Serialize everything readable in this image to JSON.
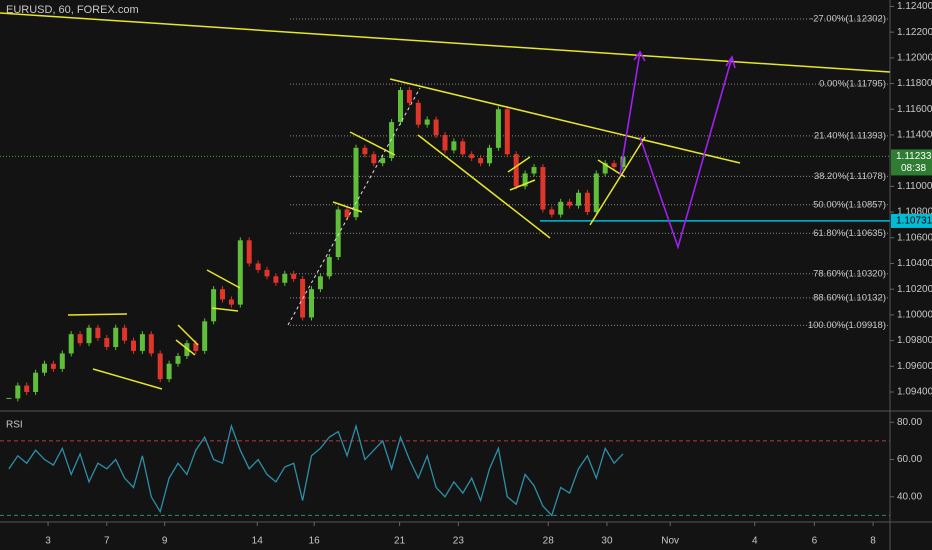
{
  "chart_data": [
    {
      "type": "candlestick",
      "title": "EURUSD, 60, FOREX.com",
      "up_color": "#5fbf3a",
      "down_color": "#e0352b",
      "x": [
        1,
        2,
        3,
        4,
        5,
        6,
        7,
        8,
        9,
        10,
        11,
        12,
        13,
        14,
        15,
        16,
        17,
        18,
        19,
        20,
        21,
        22,
        23,
        24,
        25,
        26,
        27,
        28,
        29,
        30,
        31,
        32,
        33,
        34,
        35,
        36,
        37,
        38,
        39,
        40,
        41,
        42,
        43,
        44,
        45,
        46,
        47,
        48,
        49,
        50,
        51,
        52,
        53,
        54,
        55,
        56,
        57,
        58,
        59,
        60,
        61,
        62,
        63,
        64,
        65,
        66,
        67,
        68,
        69,
        70
      ],
      "values": [
        1.0935,
        1.0945,
        1.094,
        1.0955,
        1.0962,
        1.0958,
        1.097,
        1.0985,
        1.0978,
        1.099,
        1.0982,
        1.0975,
        1.099,
        1.098,
        1.0972,
        1.0985,
        1.097,
        1.095,
        1.0962,
        1.0968,
        1.0978,
        1.0972,
        1.0995,
        1.102,
        1.1012,
        1.1008,
        1.1058,
        1.104,
        1.1035,
        1.103,
        1.1025,
        1.1032,
        1.1028,
        1.0998,
        1.102,
        1.103,
        1.1045,
        1.1082,
        1.1076,
        1.113,
        1.1125,
        1.1118,
        1.1122,
        1.115,
        1.1175,
        1.1165,
        1.1148,
        1.1152,
        1.114,
        1.1128,
        1.1135,
        1.1125,
        1.1122,
        1.1118,
        1.113,
        1.116,
        1.1125,
        1.11,
        1.111,
        1.1115,
        1.1082,
        1.1078,
        1.1088,
        1.1085,
        1.1095,
        1.108,
        1.111,
        1.1118,
        1.1115,
        1.1123
      ],
      "xlim": [
        0,
        100
      ],
      "xticks": [
        {
          "value": 5.4,
          "label": "3"
        },
        {
          "value": 12.0,
          "label": "7"
        },
        {
          "value": 18.5,
          "label": "9"
        },
        {
          "value": 28.9,
          "label": "14"
        },
        {
          "value": 35.3,
          "label": "16"
        },
        {
          "value": 44.9,
          "label": "21"
        },
        {
          "value": 51.5,
          "label": "23"
        },
        {
          "value": 61.6,
          "label": "28"
        },
        {
          "value": 68.2,
          "label": "30"
        },
        {
          "value": 75.3,
          "label": "Nov"
        },
        {
          "value": 84.8,
          "label": "4"
        },
        {
          "value": 91.5,
          "label": "6"
        },
        {
          "value": 98.1,
          "label": "8"
        }
      ],
      "ylim": [
        1.0926,
        1.1245
      ],
      "yticks": [
        {
          "value": 1.124,
          "label": "1.12400"
        },
        {
          "value": 1.122,
          "label": "1.12200"
        },
        {
          "value": 1.12,
          "label": "1.12000"
        },
        {
          "value": 1.118,
          "label": "1.11800"
        },
        {
          "value": 1.116,
          "label": "1.11600"
        },
        {
          "value": 1.114,
          "label": "1.11400"
        },
        {
          "value": 1.11,
          "label": "1.11000"
        },
        {
          "value": 1.108,
          "label": "1.10800"
        },
        {
          "value": 1.106,
          "label": "1.10600"
        },
        {
          "value": 1.104,
          "label": "1.10400"
        },
        {
          "value": 1.102,
          "label": "1.10200"
        },
        {
          "value": 1.1,
          "label": "1.10000"
        },
        {
          "value": 1.098,
          "label": "1.09800"
        },
        {
          "value": 1.096,
          "label": "1.09600"
        },
        {
          "value": 1.094,
          "label": "1.09400"
        }
      ],
      "fib_levels": [
        {
          "value": 1.12302,
          "label": "-27.00%(1.12302)"
        },
        {
          "value": 1.11795,
          "label": "0.00%(1.11795)"
        },
        {
          "value": 1.11393,
          "label": "21.40%(1.11393)"
        },
        {
          "value": 1.11078,
          "label": "38.20%(1.11078)"
        },
        {
          "value": 1.10857,
          "label": "50.00%(1.10857)"
        },
        {
          "value": 1.10635,
          "label": "61.80%(1.10635)"
        },
        {
          "value": 1.1032,
          "label": "78.60%(1.10320)"
        },
        {
          "value": 1.10132,
          "label": "88.60%(1.10132)"
        },
        {
          "value": 1.09918,
          "label": "100.00%(1.09918)"
        }
      ],
      "last_price": {
        "value": 1.11233,
        "label": "1.11233",
        "countdown": "08:38",
        "color": "#2e7d32"
      },
      "level_price": {
        "value": 1.10731,
        "label": "1.10731",
        "color": "#00bcd4"
      }
    },
    {
      "type": "line",
      "title": "RSI",
      "color": "#2e8fa8",
      "values": [
        55,
        62,
        58,
        65,
        60,
        57,
        66,
        52,
        63,
        48,
        58,
        55,
        60,
        50,
        45,
        62,
        40,
        32,
        50,
        58,
        52,
        65,
        72,
        60,
        58,
        78,
        65,
        55,
        60,
        52,
        48,
        56,
        58,
        38,
        62,
        66,
        72,
        75,
        62,
        78,
        60,
        65,
        70,
        55,
        72,
        60,
        50,
        62,
        45,
        40,
        48,
        42,
        50,
        38,
        55,
        66,
        40,
        36,
        52,
        46,
        35,
        30,
        45,
        42,
        55,
        62,
        50,
        66,
        58,
        63
      ],
      "ylim": [
        27,
        85.5
      ],
      "yticks": [
        {
          "value": 40,
          "label": "40.00"
        },
        {
          "value": 60,
          "label": "60.00"
        },
        {
          "value": 80,
          "label": "80.00"
        }
      ],
      "bands": [
        {
          "value": 70,
          "color": "#b83a3a"
        },
        {
          "value": 30,
          "color": "#2a8f7a"
        }
      ]
    }
  ]
}
